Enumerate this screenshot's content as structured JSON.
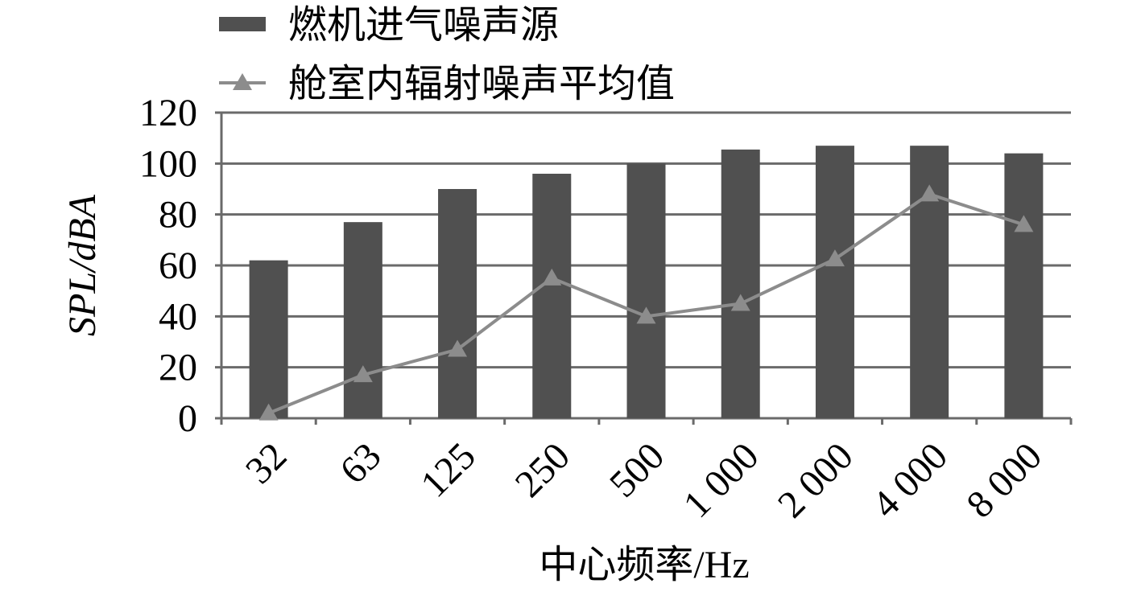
{
  "chart_data": {
    "type": "bar_line",
    "xlabel": "中心频率/Hz",
    "ylabel": "SPL/dBA",
    "categories": [
      "32",
      "63",
      "125",
      "250",
      "500",
      "1 000",
      "2 000",
      "4 000",
      "8 000"
    ],
    "series": [
      {
        "name": "燃机进气噪声源",
        "type": "bar",
        "color": "#505050",
        "values": [
          62,
          77,
          90,
          96,
          100,
          105.5,
          107,
          107,
          104
        ]
      },
      {
        "name": "舱室内辐射噪声平均值",
        "type": "line",
        "color": "#8c8c8c",
        "values": [
          2,
          17,
          27,
          55,
          40,
          45,
          62.5,
          88,
          76
        ]
      }
    ],
    "ylim": [
      0,
      120
    ],
    "yticks": [
      0,
      20,
      40,
      60,
      80,
      100,
      120
    ],
    "grid": true
  }
}
